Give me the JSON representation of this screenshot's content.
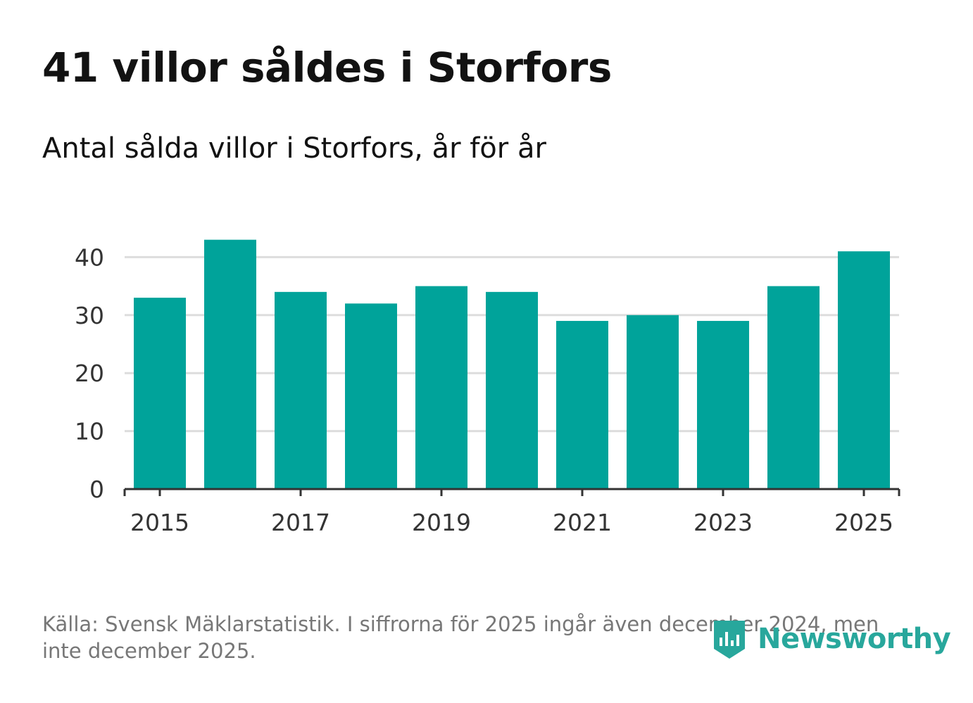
{
  "header": {
    "title": "41 villor såldes i Storfors",
    "subtitle": "Antal sålda villor i Storfors, år för år"
  },
  "footer": {
    "source": "Källa: Svensk Mäklarstatistik. I siffrorna för 2025 ingår även december 2024, men inte december 2025.",
    "logo_text": "Newsworthy"
  },
  "colors": {
    "bar": "#00a39a",
    "logo": "#28a79c",
    "grid": "#dddddd",
    "axis": "#333333"
  },
  "chart_data": {
    "type": "bar",
    "categories": [
      "2015",
      "2016",
      "2017",
      "2018",
      "2019",
      "2020",
      "2021",
      "2022",
      "2023",
      "2024",
      "2025"
    ],
    "values": [
      33,
      43,
      34,
      32,
      35,
      34,
      29,
      30,
      29,
      35,
      41
    ],
    "x_tick_labels": [
      "2015",
      "2017",
      "2019",
      "2021",
      "2023",
      "2025"
    ],
    "y_ticks": [
      0,
      10,
      20,
      30,
      40
    ],
    "ylim": [
      0,
      45
    ],
    "grid": true,
    "legend": "none"
  }
}
